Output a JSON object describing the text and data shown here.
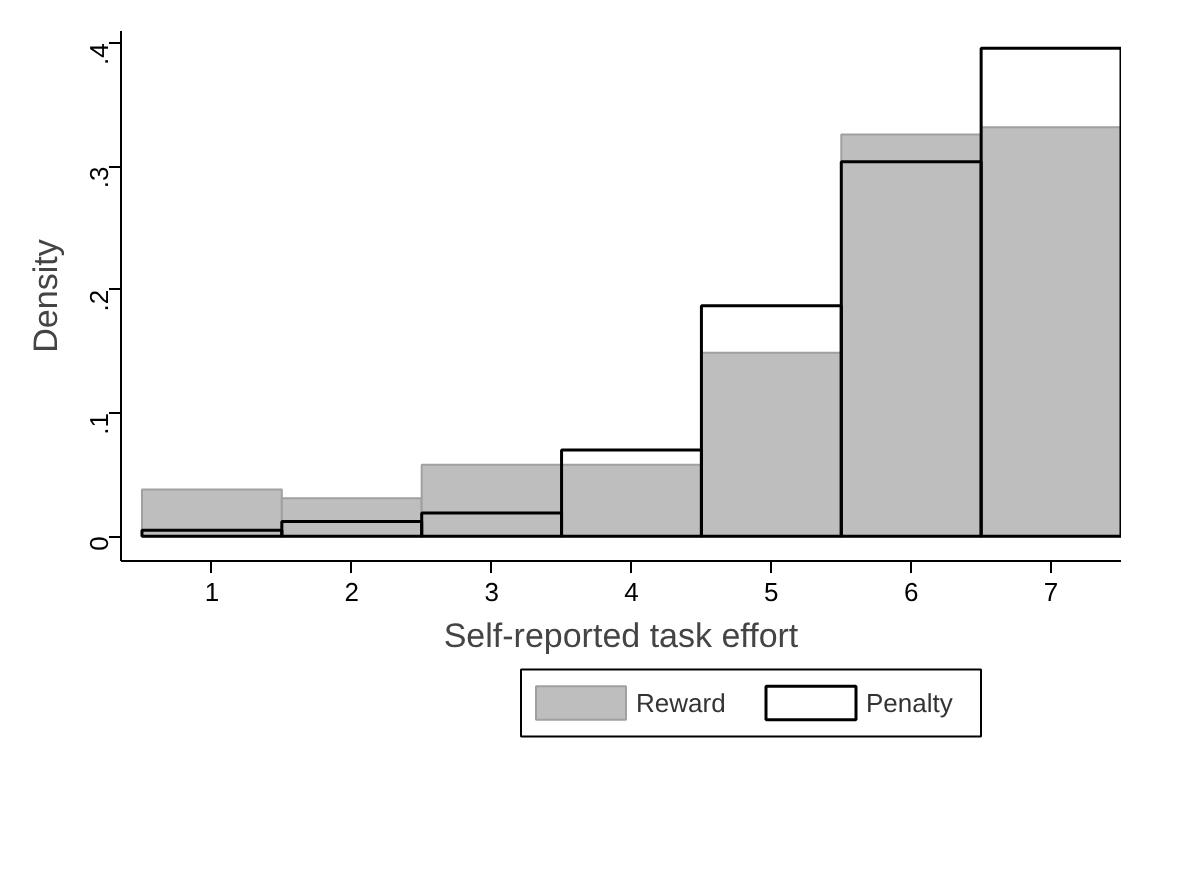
{
  "chart_data": {
    "type": "histogram",
    "xlabel": "Self-reported task effort",
    "ylabel": "Density",
    "bins": [
      0.5,
      1.5,
      2.5,
      3.5,
      4.5,
      5.5,
      6.5,
      7.5
    ],
    "series": [
      {
        "name": "Reward",
        "color": "#bebebe",
        "values": [
          0.038,
          0.031,
          0.058,
          0.058,
          0.149,
          0.326,
          0.332
        ]
      },
      {
        "name": "Penalty",
        "color": "#000000",
        "values": [
          0.005,
          0.012,
          0.019,
          0.07,
          0.187,
          0.304,
          0.396
        ]
      }
    ],
    "xlim": [
      0.35,
      7.5
    ],
    "ylim": [
      -0.02,
      0.41
    ],
    "xticks": [
      1,
      2,
      3,
      4,
      5,
      6,
      7
    ],
    "yticks": [
      0,
      {
        "value": 0.1,
        "label": ".1"
      },
      {
        "value": 0.2,
        "label": ".2"
      },
      {
        "value": 0.3,
        "label": ".3"
      },
      {
        "value": 0.4,
        "label": ".4"
      }
    ],
    "grid": false,
    "legend": "bottom"
  }
}
